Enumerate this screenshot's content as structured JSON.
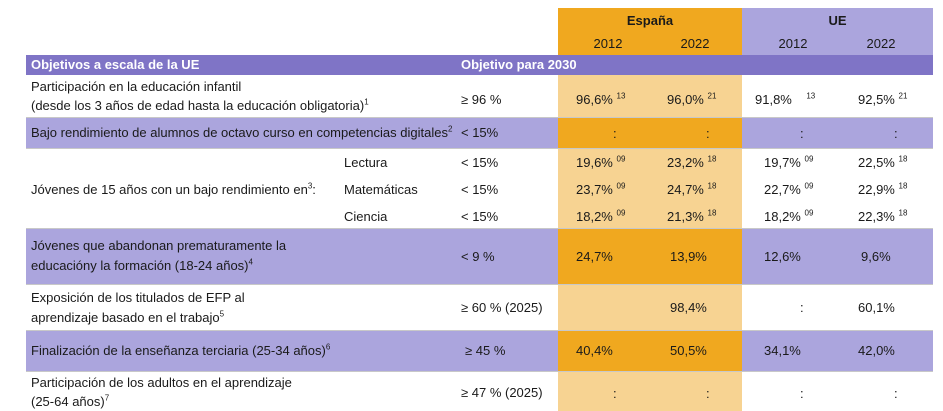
{
  "header": {
    "group_spain": "España",
    "group_eu": "UE",
    "years": [
      "2012",
      "2022",
      "2012",
      "2022"
    ],
    "col_objectives": "Objetivos a escala de la UE",
    "col_target": "Objetivo para 2030"
  },
  "colors": {
    "header_purple": "#7f74c6",
    "row_purple": "#aba5dd",
    "spain_orange": "#f0a81f",
    "spain_light": "#f7d392",
    "eu_lavender": "#aba5dd",
    "eu_light": "#d6d3ef"
  },
  "rows": [
    {
      "label1": "Participación en la educación infantil",
      "label2": "(desde los 3 años de edad hasta la educación obligatoria)",
      "label_sup": "1",
      "target": "≥ 96 %",
      "es2012": "96,6%",
      "es2012_sup": "13",
      "es2022": "96,0%",
      "es2022_sup": "21",
      "eu2012": "91,8%",
      "eu2012_sup": "13",
      "eu2022": "92,5%",
      "eu2022_sup": "21"
    },
    {
      "label1": "Bajo rendimiento de alumnos de octavo curso en competencias digitales",
      "label_sup": "2",
      "target": "< 15%",
      "es2012": ":",
      "es2022": ":",
      "eu2012": ":",
      "eu2022": ":"
    },
    {
      "group_label": "Jóvenes de 15 años con un bajo rendimiento en",
      "group_sup": "3",
      "group_suffix": ":",
      "sub": [
        {
          "name": "Lectura",
          "target": "< 15%",
          "es2012": "19,6%",
          "es2012_sup": "09",
          "es2022": "23,2%",
          "es2022_sup": "18",
          "eu2012": "19,7%",
          "eu2012_sup": "09",
          "eu2022": "22,5%",
          "eu2022_sup": "18"
        },
        {
          "name": "Matemáticas",
          "target": "< 15%",
          "es2012": "23,7%",
          "es2012_sup": "09",
          "es2022": "24,7%",
          "es2022_sup": "18",
          "eu2012": "22,7%",
          "eu2012_sup": "09",
          "eu2022": "22,9%",
          "eu2022_sup": "18"
        },
        {
          "name": "Ciencia",
          "target": "< 15%",
          "es2012": "18,2%",
          "es2012_sup": "09",
          "es2022": "21,3%",
          "es2022_sup": "18",
          "eu2012": "18,2%",
          "eu2012_sup": "09",
          "eu2022": "22,3%",
          "eu2022_sup": "18"
        }
      ]
    },
    {
      "label1": "Jóvenes que abandonan prematuramente la",
      "label2": "educacióny la formación (18-24 años)",
      "label_sup": "4",
      "target": "< 9 %",
      "es2012": "24,7%",
      "es2022": "13,9%",
      "eu2012": "12,6%",
      "eu2022": "9,6%"
    },
    {
      "label1": "Exposición de los titulados de EFP al",
      "label2": "aprendizaje basado en el trabajo",
      "label_sup": "5",
      "target": "≥  60 % (2025)",
      "es2012": "",
      "es2022": "98,4%",
      "eu2012": ":",
      "eu2022": "60,1%"
    },
    {
      "label1": "Finalización de la enseñanza terciaria (25-34 años)",
      "label_sup": "6",
      "target": "≥ 45 %",
      "es2012": "40,4%",
      "es2022": "50,5%",
      "eu2012": "34,1%",
      "eu2022": "42,0%"
    },
    {
      "label1": "Participación de los adultos en el aprendizaje",
      "label2": "(25-64 años)",
      "label_sup": "7",
      "target": "≥ 47 % (2025)",
      "es2012": ":",
      "es2022": ":",
      "eu2012": ":",
      "eu2022": ":"
    }
  ]
}
